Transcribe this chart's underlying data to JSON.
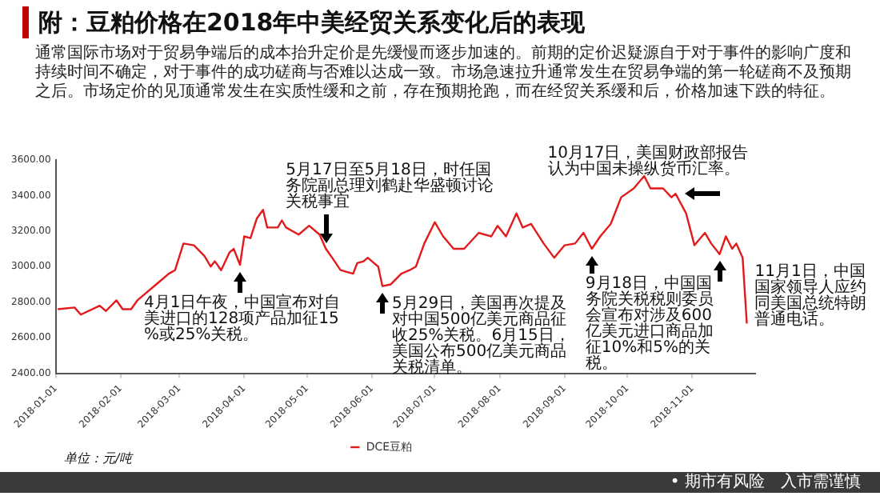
{
  "chart_data": {
    "type": "line",
    "title": "附：豆粕价格在2018年中美经贸关系变化后的表现",
    "subtitle": "通常国际市场对于贸易争端后的成本抬升定价是先缓慢而逐步加速的。前期的定价迟疑源自于对于事件的影响广度和持续时间不确定，对于事件的成功磋商与否难以达成一致。市场急速拉升通常发生在贸易争端的第一轮磋商不及预期之后。市场定价的见顶通常发生在实质性缓和之前，存在预期抢跑，而在经贸关系缓和后，价格加速下跌的特征。",
    "x": [
      "2018-01-02",
      "2018-01-10",
      "2018-01-13",
      "2018-01-22",
      "2018-01-25",
      "2018-01-30",
      "2018-02-02",
      "2018-02-06",
      "2018-02-09",
      "2018-02-19",
      "2018-02-24",
      "2018-02-27",
      "2018-03-03",
      "2018-03-08",
      "2018-03-13",
      "2018-03-16",
      "2018-03-18",
      "2018-03-21",
      "2018-03-25",
      "2018-03-27",
      "2018-03-30",
      "2018-04-01",
      "2018-04-04",
      "2018-04-07",
      "2018-04-10",
      "2018-04-12",
      "2018-04-17",
      "2018-04-19",
      "2018-04-21",
      "2018-04-27",
      "2018-05-02",
      "2018-05-07",
      "2018-05-10",
      "2018-05-13",
      "2018-05-17",
      "2018-05-23",
      "2018-05-25",
      "2018-05-28",
      "2018-05-30",
      "2018-06-02",
      "2018-06-04",
      "2018-06-06",
      "2018-06-10",
      "2018-06-15",
      "2018-06-19",
      "2018-06-22",
      "2018-06-26",
      "2018-07-01",
      "2018-07-05",
      "2018-07-10",
      "2018-07-15",
      "2018-07-22",
      "2018-07-28",
      "2018-07-31",
      "2018-08-04",
      "2018-08-09",
      "2018-08-12",
      "2018-08-16",
      "2018-08-22",
      "2018-08-27",
      "2018-09-01",
      "2018-09-06",
      "2018-09-10",
      "2018-09-14",
      "2018-09-18",
      "2018-09-23",
      "2018-09-28",
      "2018-10-04",
      "2018-10-09",
      "2018-10-12",
      "2018-10-18",
      "2018-10-22",
      "2018-10-24",
      "2018-10-29",
      "2018-11-02",
      "2018-11-07",
      "2018-11-10",
      "2018-11-14",
      "2018-11-17",
      "2018-11-20",
      "2018-11-22",
      "2018-11-25",
      "2018-11-27"
    ],
    "series": [
      {
        "name": "DCE豆粕",
        "color": "#e31a1c",
        "values": [
          2760,
          2770,
          2730,
          2780,
          2750,
          2810,
          2760,
          2760,
          2810,
          2910,
          2960,
          2980,
          3130,
          3120,
          3060,
          3000,
          3030,
          2980,
          3080,
          3100,
          3010,
          3170,
          3160,
          3270,
          3320,
          3220,
          3220,
          3260,
          3220,
          3180,
          3230,
          3180,
          3100,
          3050,
          2980,
          2960,
          3020,
          3030,
          3050,
          3020,
          3000,
          2890,
          2900,
          2960,
          2980,
          3000,
          3130,
          3250,
          3170,
          3100,
          3100,
          3190,
          3170,
          3230,
          3170,
          3300,
          3220,
          3240,
          3130,
          3050,
          3120,
          3130,
          3190,
          3100,
          3170,
          3240,
          3390,
          3440,
          3510,
          3440,
          3440,
          3390,
          3410,
          3300,
          3120,
          3190,
          3130,
          3070,
          3170,
          3100,
          3130,
          3050,
          2680
        ]
      }
    ],
    "xlim": [
      "2018-01-01",
      "2018-12-01"
    ],
    "xticks": [
      "2018-01-01",
      "2018-02-01",
      "2018-03-01",
      "2018-04-01",
      "2018-05-01",
      "2018-06-01",
      "2018-07-01",
      "2018-08-01",
      "2018-09-01",
      "2018-10-01",
      "2018-11-01"
    ],
    "ylim": [
      2400,
      3600
    ],
    "yticks": [
      {
        "value": 2400,
        "label": "2400.00"
      },
      {
        "value": 2600,
        "label": "2600.00"
      },
      {
        "value": 2800,
        "label": "2800.00"
      },
      {
        "value": 3000,
        "label": "3000.00"
      },
      {
        "value": 3200,
        "label": "3200.00"
      },
      {
        "value": 3400,
        "label": "3400.00"
      },
      {
        "value": 3600,
        "label": "3600.00"
      }
    ],
    "legend": "bottom",
    "marker": "none",
    "annotations": [
      "单位：元/吨",
      {
        "text": "4月1日午夜，中国宣布对自美进口的128项产品加征15%或25%关税。",
        "x": "2018-03-30",
        "y": 3010
      },
      {
        "text": "5月17日至5月18日，时任国务院副总理刘鹤赴华盛顿讨论关税事宜",
        "x": "2018-05-10",
        "y": 3100
      },
      {
        "text": "5月29日，美国再次提及对中国500亿美元商品征收25%关税。6月15日，美国公布500亿美元商品关税清单。",
        "x": "2018-06-06",
        "y": 2890
      },
      {
        "text": "9月18日，中国国务院关税税则委员会宣布对涉及600亿美元进口商品加征10%和5%的关税。",
        "x": "2018-09-14",
        "y": 3100
      },
      {
        "text": "10月17日，美国财政部报告认为中国未操纵货币汇率。",
        "x": "2018-10-24",
        "y": 3410
      },
      {
        "text": "11月1日，中国国家领导人应约同美国总统特朗普通电话。",
        "x": "2018-11-14",
        "y": 3070
      },
      "• 期市有风险　入市需谨慎"
    ]
  }
}
